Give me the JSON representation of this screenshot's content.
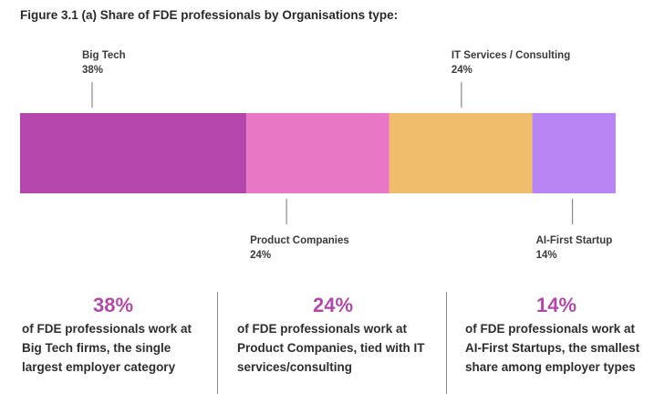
{
  "title": "Figure 3.1 (a) Share of FDE professionals by Organisations type:",
  "colors": {
    "accent": "#b04aa8"
  },
  "chart_data": {
    "type": "bar",
    "orientation": "horizontal-stacked-100",
    "categories": [
      "Big Tech",
      "Product Companies",
      "IT Services / Consulting",
      "AI-First Startup"
    ],
    "values": [
      38,
      24,
      24,
      14
    ],
    "value_labels": [
      "38%",
      "24%",
      "24%",
      "14%"
    ],
    "label_positions": [
      "above",
      "below",
      "above",
      "below"
    ],
    "colors": [
      "#b347ac",
      "#e878c5",
      "#efbd6c",
      "#b886f2"
    ],
    "xlim": [
      0,
      100
    ]
  },
  "stats": [
    {
      "value": "38%",
      "description": "of FDE professionals work at Big Tech firms, the single largest employer category"
    },
    {
      "value": "24%",
      "description": "of FDE professionals work at Product Companies, tied with IT services/consulting"
    },
    {
      "value": "14%",
      "description": "of FDE professionals work at AI-First Startups, the smallest share among employer types"
    }
  ]
}
